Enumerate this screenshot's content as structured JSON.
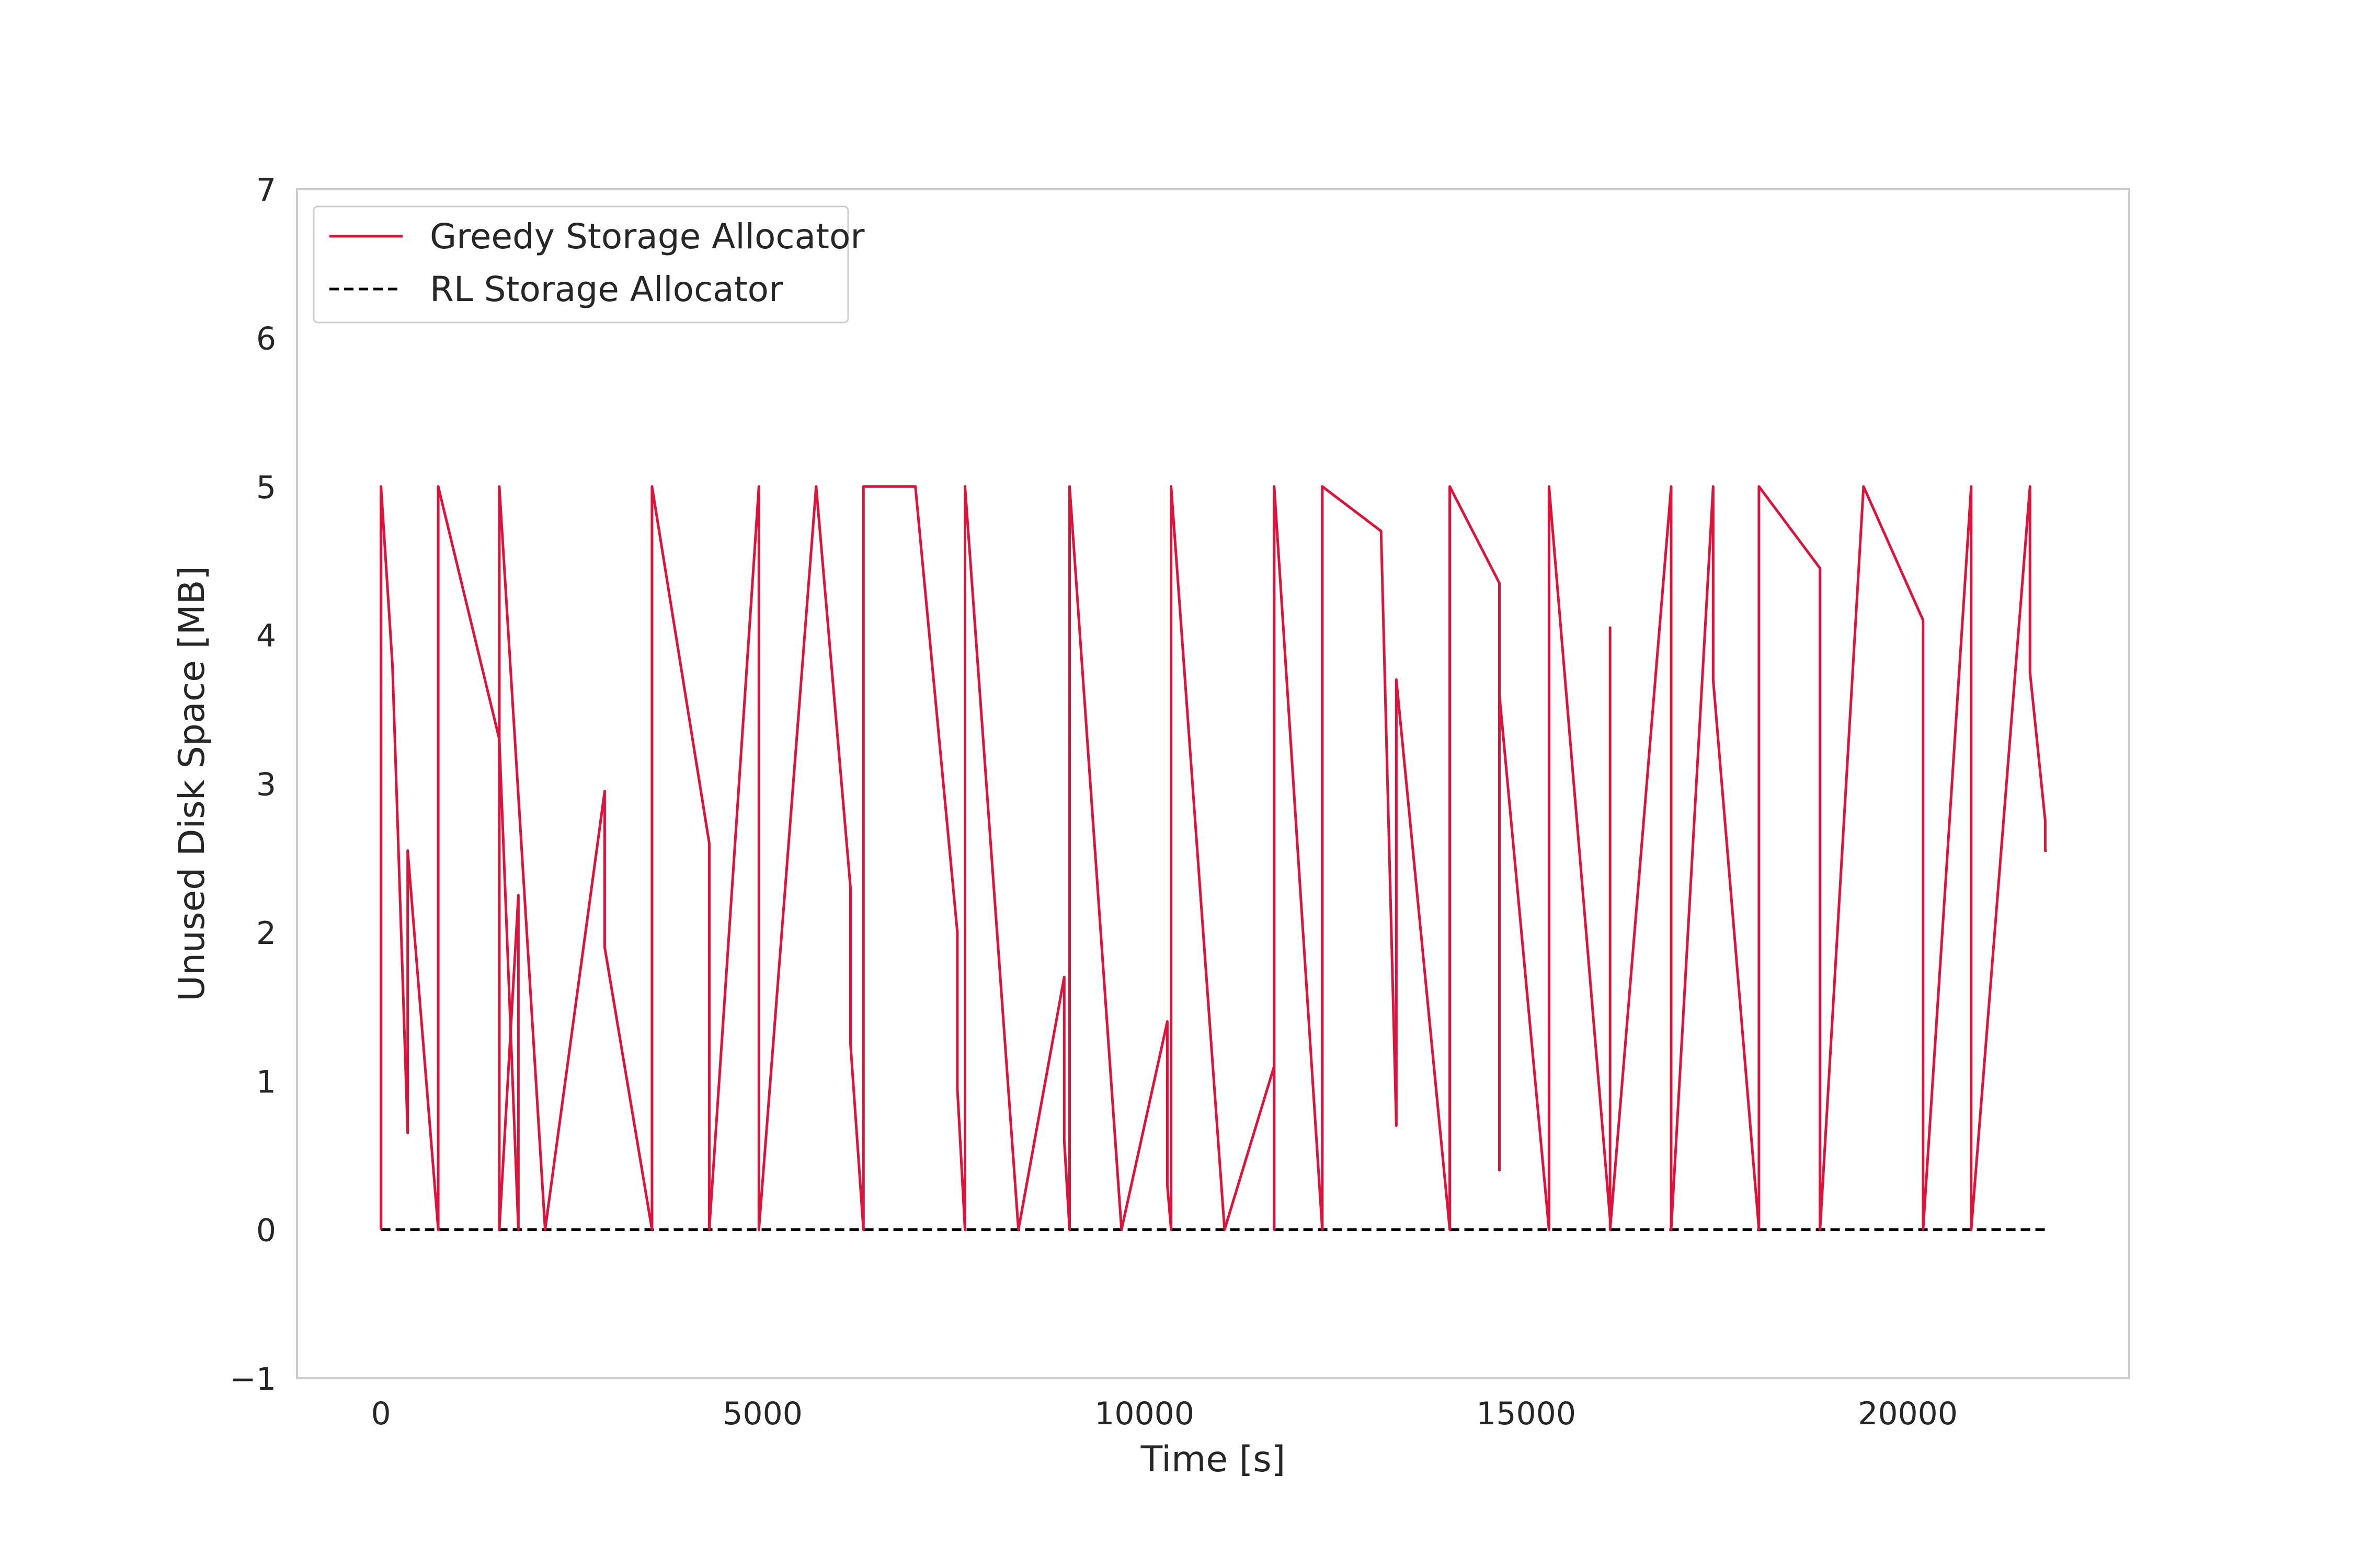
{
  "chart_data": {
    "type": "line",
    "title": "",
    "xlabel": "Time [s]",
    "ylabel": "Unused Disk Space [MB]",
    "xlim": [
      -1100,
      22900
    ],
    "ylim": [
      -1,
      7
    ],
    "xticks": [
      0,
      5000,
      10000,
      15000,
      20000
    ],
    "xtick_labels": [
      "0",
      "5000",
      "10000",
      "15000",
      "20000"
    ],
    "yticks": [
      -1,
      0,
      1,
      2,
      3,
      4,
      5,
      6,
      7
    ],
    "ytick_labels": [
      "−1",
      "0",
      "1",
      "2",
      "3",
      "4",
      "5",
      "6",
      "7"
    ],
    "grid": false,
    "legend_position": "upper-left",
    "series": [
      {
        "name": "Greedy Storage Allocator",
        "color": "#dc143c",
        "style": "solid",
        "x": [
          0,
          0,
          150,
          350,
          350,
          350,
          750,
          750,
          1550,
          1800,
          1800,
          1550,
          1550,
          2150,
          2930,
          2930,
          3550,
          3550,
          3550,
          4300,
          4300,
          4300,
          4950,
          4950,
          4950,
          5700,
          6150,
          6150,
          6320,
          6320,
          7000,
          7550,
          7550,
          7650,
          7650,
          8350,
          8950,
          8950,
          9020,
          9020,
          9700,
          10300,
          10300,
          10350,
          10350,
          11050,
          11700,
          11700,
          11700,
          12330,
          12330,
          13100,
          13300,
          13300,
          13300,
          14000,
          14000,
          14650,
          14650,
          14650,
          15300,
          15300,
          16100,
          16100,
          16100,
          16900,
          16900,
          17450,
          17450,
          17450,
          18050,
          18050,
          18050,
          18850,
          18850,
          18850,
          19420,
          19420,
          20200,
          20200,
          20200,
          20830,
          20830,
          21600,
          21600,
          21600,
          21800,
          21800,
          21820
        ],
        "y": [
          0,
          5,
          3.8,
          0.65,
          2.55,
          2.55,
          0,
          5,
          3.3,
          0,
          2.25,
          0,
          5,
          0,
          2.95,
          1.9,
          0,
          5,
          5,
          2.6,
          1.6,
          0,
          5,
          5,
          0,
          5,
          2.3,
          1.25,
          0,
          5,
          5,
          2.0,
          0.95,
          0,
          5,
          0,
          1.7,
          0.6,
          0,
          5,
          0,
          1.4,
          0.3,
          0,
          5,
          0,
          1.1,
          0,
          5,
          0,
          5,
          4.7,
          0.7,
          0.7,
          3.7,
          0,
          5,
          4.35,
          0.4,
          3.6,
          0,
          5,
          0.07,
          4.05,
          0,
          5,
          0,
          5,
          4.75,
          3.7,
          0,
          5,
          5,
          4.45,
          3.4,
          0,
          5,
          5,
          4.1,
          3.1,
          0,
          5,
          0,
          5,
          5,
          3.75,
          2.75,
          2.55,
          2.55
        ],
        "note_omitted_samples": []
      },
      {
        "name": "RL Storage Allocator",
        "color": "#000000",
        "style": "dashed",
        "x": [
          0,
          21820
        ],
        "y": [
          0,
          0
        ]
      }
    ]
  }
}
